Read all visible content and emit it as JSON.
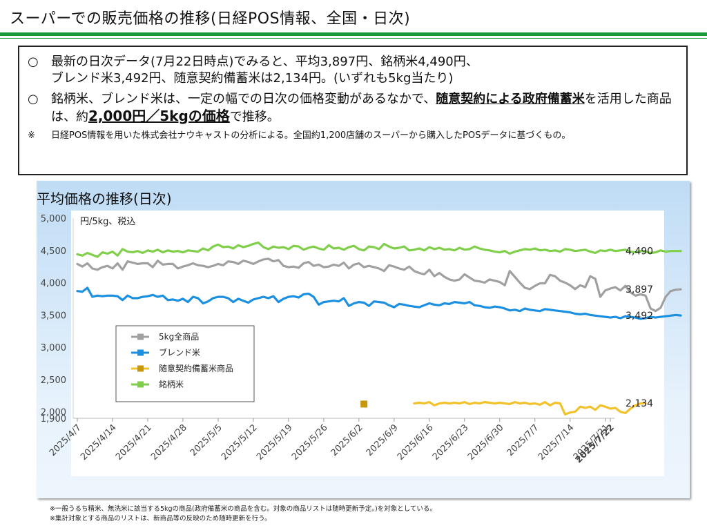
{
  "page": {
    "title": "スーパーでの販売価格の推移(日経POS情報、全国・日次)"
  },
  "summary": {
    "bullet_mark": "○",
    "bullet1": "最新の日次データ(7月22日時点)でみると、平均3,897円、銘柄米4,490円、\nブレンド米3,492円、随意契約備蓄米は2,134円。(いずれも5kg当たり)",
    "bullet2_a": "銘柄米、ブレンド米は、一定の幅での日次の価格変動があるなかで、",
    "bullet2_b": "随意契約による政府備蓄米",
    "bullet2_c": "を活用した商品は、約",
    "bullet2_d": "2,000円／5kgの価格",
    "bullet2_e": "で推移。",
    "note_mark": "※",
    "note": "日経POS情報を用いた株式会社ナウキャストの分析による。全国約1,200店舗のスーパーから購入したPOSデータに基づくもの。"
  },
  "chart_panel": {
    "title": "平均価格の推移(日次)"
  },
  "footnotes": [
    "※一般うるち精米、無洗米に該当する5kgの商品(政府備蓄米の商品を含む。対象の商品リストは随時更新予定。)を対象としている。",
    "※集計対象とする商品のリストは、新商品等の反映のため随時更新を行う。"
  ],
  "chart_data": {
    "type": "line",
    "unit_label": "円/5kg、税込",
    "x_start": "2025/4/7",
    "x_end": "2025/7/22",
    "ylim": [
      1900,
      5000
    ],
    "yticks": [
      5000,
      4500,
      4000,
      3500,
      3000,
      2500,
      2000,
      1900
    ],
    "ytick_labels": [
      "5,000",
      "4,500",
      "4,000",
      "3,500",
      "3,000",
      "2,500",
      "2,000",
      "1,900"
    ],
    "xtick_labels": [
      "2025/4/7",
      "2025/4/14",
      "2025/4/21",
      "2025/4/28",
      "2025/5/5",
      "2025/5/12",
      "2025/5/19",
      "2025/5/26",
      "2025/6/2",
      "2025/6/9",
      "2025/6/16",
      "2025/6/23",
      "2025/6/30",
      "2025/7/7",
      "2025/7/14",
      "2025/7/21",
      "2025/7/22"
    ],
    "legend_placement": "left-middle",
    "series": [
      {
        "name": "5kg全商品",
        "color": "#a0a0a0",
        "end_label": "3,897",
        "values": [
          4290,
          4250,
          4300,
          4220,
          4200,
          4240,
          4260,
          4220,
          4300,
          4200,
          4330,
          4310,
          4290,
          4300,
          4300,
          4240,
          4340,
          4280,
          4290,
          4290,
          4220,
          4250,
          4270,
          4300,
          4270,
          4260,
          4240,
          4260,
          4290,
          4270,
          4330,
          4320,
          4290,
          4340,
          4320,
          4290,
          4330,
          4360,
          4370,
          4330,
          4350,
          4260,
          4240,
          4250,
          4230,
          4300,
          4320,
          4260,
          4280,
          4240,
          4250,
          4280,
          4260,
          4310,
          4220,
          4280,
          4300,
          4240,
          4260,
          4240,
          4220,
          4180,
          4270,
          4250,
          4220,
          4200,
          4250,
          4180,
          4150,
          4130,
          4200,
          4100,
          4150,
          4090,
          4050,
          4030,
          4050,
          4130,
          4080,
          4030,
          4020,
          4000,
          4050,
          4030,
          4010,
          3960,
          4180,
          4090,
          4000,
          3920,
          3900,
          3950,
          3990,
          3990,
          4120,
          4100,
          4030,
          4000,
          3960,
          3900,
          3960,
          3930,
          4100,
          4060,
          3780,
          3880,
          3910,
          3930,
          3880,
          3950,
          3850,
          3800,
          3820,
          3800,
          3600,
          3560,
          3610,
          3780,
          3870,
          3890,
          3897
        ]
      },
      {
        "name": "ブレンド米",
        "color": "#1b8fe0",
        "end_label": "3,492",
        "values": [
          3870,
          3860,
          3920,
          3780,
          3800,
          3790,
          3800,
          3800,
          3790,
          3730,
          3800,
          3760,
          3760,
          3780,
          3790,
          3810,
          3780,
          3800,
          3730,
          3740,
          3720,
          3750,
          3700,
          3780,
          3760,
          3680,
          3710,
          3760,
          3780,
          3780,
          3760,
          3700,
          3750,
          3720,
          3690,
          3740,
          3760,
          3780,
          3760,
          3790,
          3700,
          3750,
          3780,
          3790,
          3770,
          3820,
          3830,
          3780,
          3660,
          3700,
          3710,
          3720,
          3710,
          3760,
          3640,
          3680,
          3700,
          3690,
          3640,
          3710,
          3700,
          3690,
          3650,
          3620,
          3670,
          3660,
          3640,
          3630,
          3620,
          3650,
          3680,
          3660,
          3650,
          3680,
          3670,
          3700,
          3690,
          3680,
          3700,
          3650,
          3640,
          3620,
          3610,
          3630,
          3620,
          3600,
          3570,
          3580,
          3560,
          3600,
          3580,
          3570,
          3560,
          3590,
          3580,
          3570,
          3560,
          3550,
          3540,
          3520,
          3510,
          3520,
          3500,
          3490,
          3480,
          3470,
          3460,
          3470,
          3450,
          3480,
          3470,
          3460,
          3440,
          3450,
          3470,
          3460,
          3470,
          3480,
          3490,
          3500,
          3492
        ]
      },
      {
        "name": "随意契約備蓄米商品",
        "color": "#f2c22c",
        "marker_color": "#c8960a",
        "end_label": "2,134",
        "single_point": {
          "index": 57,
          "value": 2120
        },
        "start_index": 67,
        "values": [
          2130,
          2140,
          2130,
          2150,
          2100,
          2130,
          2140,
          2130,
          2140,
          2130,
          2150,
          2120,
          2140,
          2130,
          2150,
          2140,
          2130,
          2140,
          2130,
          2120,
          2150,
          2130,
          2140,
          2120,
          2130,
          2110,
          2150,
          2100,
          2140,
          2130,
          1960,
          1990,
          2000,
          2080,
          2060,
          2080,
          2030,
          2100,
          2080,
          2050,
          2060,
          2000,
          1980,
          2050,
          2100,
          2130,
          2134
        ]
      },
      {
        "name": "銘柄米",
        "color": "#7fcf4a",
        "end_label": "4,490",
        "values": [
          4440,
          4420,
          4460,
          4430,
          4400,
          4470,
          4450,
          4480,
          4420,
          4520,
          4480,
          4470,
          4490,
          4460,
          4500,
          4480,
          4510,
          4470,
          4500,
          4480,
          4490,
          4470,
          4500,
          4490,
          4480,
          4530,
          4500,
          4560,
          4590,
          4550,
          4560,
          4530,
          4580,
          4550,
          4570,
          4600,
          4620,
          4550,
          4520,
          4560,
          4540,
          4550,
          4520,
          4570,
          4560,
          4510,
          4540,
          4560,
          4530,
          4510,
          4580,
          4530,
          4540,
          4510,
          4550,
          4570,
          4520,
          4500,
          4560,
          4550,
          4520,
          4600,
          4560,
          4530,
          4540,
          4560,
          4500,
          4510,
          4530,
          4500,
          4550,
          4520,
          4540,
          4510,
          4520,
          4500,
          4540,
          4510,
          4520,
          4560,
          4530,
          4510,
          4500,
          4480,
          4470,
          4490,
          4450,
          4480,
          4500,
          4520,
          4510,
          4530,
          4500,
          4510,
          4490,
          4500,
          4480,
          4520,
          4510,
          4490,
          4500,
          4510,
          4480,
          4460,
          4500,
          4490,
          4510,
          4490,
          4500,
          4510,
          4480,
          4470,
          4490,
          4480,
          4460,
          4470,
          4500,
          4480,
          4490,
          4490,
          4490
        ]
      }
    ]
  }
}
